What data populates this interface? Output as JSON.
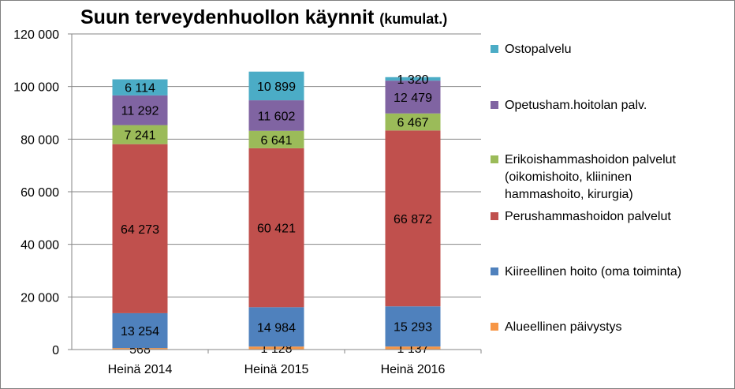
{
  "chart_data": {
    "type": "bar",
    "stacked": true,
    "title": "Suun terveydenhuollon käynnit",
    "title_suffix": "(kumulat.)",
    "categories": [
      "Heinä 2014",
      "Heinä 2015",
      "Heinä 2016"
    ],
    "ylim": [
      0,
      120000
    ],
    "yticks": [
      0,
      20000,
      40000,
      60000,
      80000,
      100000,
      120000
    ],
    "ytick_labels": [
      "0",
      "20 000",
      "40 000",
      "60 000",
      "80 000",
      "100 000",
      "120 000"
    ],
    "grid": true,
    "legend_position": "right",
    "series": [
      {
        "name": "Alueellinen päivystys",
        "color": "#f79646",
        "values": [
          568,
          1128,
          1137
        ],
        "labels": [
          "568",
          "1 128",
          "1 137"
        ]
      },
      {
        "name": "Kiireellinen hoito (oma toiminta)",
        "color": "#4f81bd",
        "values": [
          13254,
          14984,
          15293
        ],
        "labels": [
          "13 254",
          "14 984",
          "15 293"
        ]
      },
      {
        "name": "Perushammashoidon palvelut",
        "color": "#c0504d",
        "values": [
          64273,
          60421,
          66872
        ],
        "labels": [
          "64 273",
          "60 421",
          "66 872"
        ]
      },
      {
        "name": "Erikoishammashoidon palvelut\n(oikomishoito, kliininen\nhammashoito, kirurgia)",
        "color": "#9bbb59",
        "values": [
          7241,
          6641,
          6467
        ],
        "labels": [
          "7 241",
          "6 641",
          "6 467"
        ]
      },
      {
        "name": "Opetusham.hoitolan palv.",
        "color": "#8064a2",
        "values": [
          11292,
          11602,
          12479
        ],
        "labels": [
          "11 292",
          "11 602",
          "12 479"
        ]
      },
      {
        "name": "Ostopalvelu",
        "color": "#4bacc6",
        "values": [
          6114,
          10899,
          1320
        ],
        "labels": [
          "6 114",
          "10 899",
          "1 320"
        ]
      }
    ]
  }
}
